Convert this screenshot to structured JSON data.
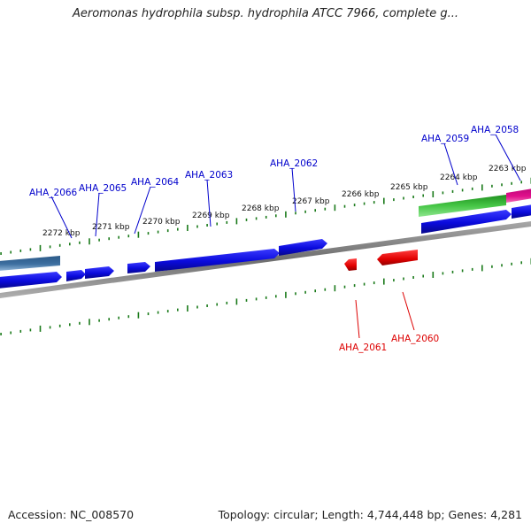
{
  "title": "Aeromonas hydrophila subsp. hydrophila ATCC 7966, complete g...",
  "footer": {
    "accession": "Accession: NC_008570",
    "summary": "Topology: circular; Length: 4,744,448 bp; Genes: 4,281"
  },
  "colors": {
    "background": "#ffffff",
    "backbone": "#808080",
    "ticks": "#1a7a1a",
    "label_top": "#0000cc",
    "label_bottom": "#dd0000",
    "gene_blue": "#0a0adc",
    "gene_red": "#e00000",
    "gene_green": "#2ab02a",
    "gene_steel": "#3d6fa0",
    "gene_magenta": "#e0108c"
  },
  "scale": {
    "unit": "kbp",
    "ticks": [
      {
        "kbp": 2272,
        "label": "2272 kbp"
      },
      {
        "kbp": 2271,
        "label": "2271 kbp"
      },
      {
        "kbp": 2270,
        "label": "2270 kbp"
      },
      {
        "kbp": 2269,
        "label": "2269 kbp"
      },
      {
        "kbp": 2268,
        "label": "2268 kbp"
      },
      {
        "kbp": 2267,
        "label": "2267 kbp"
      },
      {
        "kbp": 2266,
        "label": "2266 kbp"
      },
      {
        "kbp": 2265,
        "label": "2265 kbp"
      },
      {
        "kbp": 2264,
        "label": "2264 kbp"
      },
      {
        "kbp": 2263,
        "label": "2263 kbp"
      }
    ]
  },
  "genes_top": [
    {
      "label": "AHA_2066"
    },
    {
      "label": "AHA_2065"
    },
    {
      "label": "AHA_2064"
    },
    {
      "label": "AHA_2063"
    },
    {
      "label": "AHA_2062"
    },
    {
      "label": "AHA_2059"
    },
    {
      "label": "AHA_2058"
    }
  ],
  "genes_bottom": [
    {
      "label": "AHA_2061"
    },
    {
      "label": "AHA_2060"
    }
  ]
}
